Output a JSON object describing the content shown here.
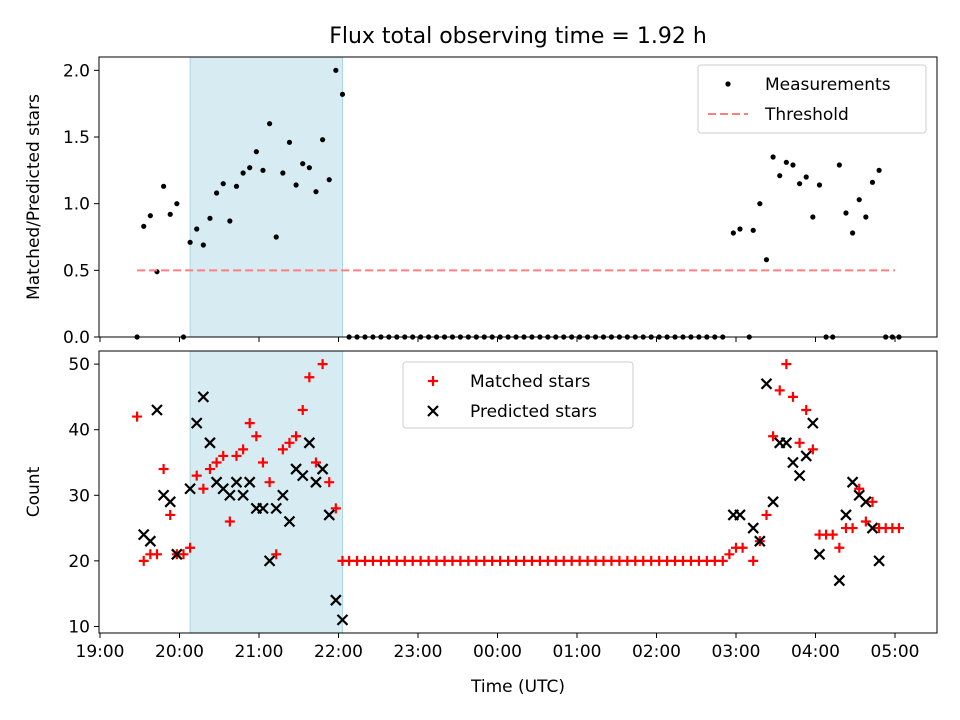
{
  "figure": {
    "title": "Flux total observing time = 1.92 h",
    "xlabel": "Time (UTC)",
    "x_ticks": [
      "19:00",
      "20:00",
      "21:00",
      "22:00",
      "23:00",
      "00:00",
      "01:00",
      "02:00",
      "03:00",
      "04:00",
      "05:00"
    ],
    "observing_window": {
      "start": "20:08",
      "end": "22:03",
      "color": "#add8e6"
    }
  },
  "chart_data": [
    {
      "type": "scatter",
      "ylabel": "Matched/Predicted stars",
      "ylim": [
        0,
        2.1
      ],
      "y_ticks": [
        "0.0",
        "0.5",
        "1.0",
        "1.5",
        "2.0"
      ],
      "legend_position": "upper-right",
      "series": [
        {
          "name": "Measurements",
          "color": "#000000",
          "marker": "dot",
          "points": [
            [
              "19:28",
              0.0
            ],
            [
              "19:33",
              0.83
            ],
            [
              "19:38",
              0.91
            ],
            [
              "19:43",
              0.49
            ],
            [
              "19:48",
              1.13
            ],
            [
              "19:53",
              0.92
            ],
            [
              "19:58",
              1.0
            ],
            [
              "20:03",
              0.0
            ],
            [
              "20:08",
              0.71
            ],
            [
              "20:13",
              0.81
            ],
            [
              "20:18",
              0.69
            ],
            [
              "20:23",
              0.89
            ],
            [
              "20:28",
              1.08
            ],
            [
              "20:33",
              1.15
            ],
            [
              "20:38",
              0.87
            ],
            [
              "20:43",
              1.13
            ],
            [
              "20:48",
              1.23
            ],
            [
              "20:53",
              1.27
            ],
            [
              "20:58",
              1.39
            ],
            [
              "21:03",
              1.25
            ],
            [
              "21:08",
              1.6
            ],
            [
              "21:13",
              0.75
            ],
            [
              "21:18",
              1.23
            ],
            [
              "21:23",
              1.46
            ],
            [
              "21:28",
              1.14
            ],
            [
              "21:33",
              1.3
            ],
            [
              "21:38",
              1.27
            ],
            [
              "21:43",
              1.09
            ],
            [
              "21:48",
              1.48
            ],
            [
              "21:53",
              1.18
            ],
            [
              "21:58",
              2.0
            ],
            [
              "22:03",
              1.82
            ],
            [
              "22:08",
              0
            ],
            [
              "22:14",
              0
            ],
            [
              "22:20",
              0
            ],
            [
              "22:26",
              0
            ],
            [
              "22:32",
              0
            ],
            [
              "22:38",
              0
            ],
            [
              "22:44",
              0
            ],
            [
              "22:50",
              0
            ],
            [
              "22:56",
              0
            ],
            [
              "23:02",
              0
            ],
            [
              "23:08",
              0
            ],
            [
              "23:14",
              0
            ],
            [
              "23:20",
              0
            ],
            [
              "23:26",
              0
            ],
            [
              "23:32",
              0
            ],
            [
              "23:38",
              0
            ],
            [
              "23:44",
              0
            ],
            [
              "23:50",
              0
            ],
            [
              "23:56",
              0
            ],
            [
              "00:02",
              0
            ],
            [
              "00:08",
              0
            ],
            [
              "00:14",
              0
            ],
            [
              "00:20",
              0
            ],
            [
              "00:26",
              0
            ],
            [
              "00:32",
              0
            ],
            [
              "00:38",
              0
            ],
            [
              "00:44",
              0
            ],
            [
              "00:50",
              0
            ],
            [
              "00:56",
              0
            ],
            [
              "01:02",
              0
            ],
            [
              "01:08",
              0
            ],
            [
              "01:14",
              0
            ],
            [
              "01:20",
              0
            ],
            [
              "01:26",
              0
            ],
            [
              "01:32",
              0
            ],
            [
              "01:38",
              0
            ],
            [
              "01:44",
              0
            ],
            [
              "01:50",
              0
            ],
            [
              "01:56",
              0
            ],
            [
              "02:02",
              0
            ],
            [
              "02:08",
              0
            ],
            [
              "02:14",
              0
            ],
            [
              "02:20",
              0
            ],
            [
              "02:26",
              0
            ],
            [
              "02:32",
              0
            ],
            [
              "02:38",
              0
            ],
            [
              "02:44",
              0
            ],
            [
              "02:50",
              0
            ],
            [
              "02:58",
              0.78
            ],
            [
              "03:03",
              0.81
            ],
            [
              "03:10",
              0.0
            ],
            [
              "03:13",
              0.8
            ],
            [
              "03:18",
              1.0
            ],
            [
              "03:23",
              0.58
            ],
            [
              "03:28",
              1.35
            ],
            [
              "03:33",
              1.21
            ],
            [
              "03:38",
              1.31
            ],
            [
              "03:43",
              1.29
            ],
            [
              "03:48",
              1.15
            ],
            [
              "03:53",
              1.2
            ],
            [
              "03:58",
              0.9
            ],
            [
              "04:03",
              1.14
            ],
            [
              "04:08",
              0.0
            ],
            [
              "04:13",
              0.0
            ],
            [
              "04:18",
              1.29
            ],
            [
              "04:23",
              0.93
            ],
            [
              "04:28",
              0.78
            ],
            [
              "04:33",
              1.03
            ],
            [
              "04:38",
              0.9
            ],
            [
              "04:43",
              1.16
            ],
            [
              "04:48",
              1.25
            ],
            [
              "04:53",
              0.0
            ],
            [
              "04:58",
              0.0
            ],
            [
              "05:03",
              0.0
            ]
          ]
        },
        {
          "name": "Threshold",
          "color": "#ff7f7f",
          "style": "dashed",
          "points": [
            [
              "19:28",
              0.5
            ],
            [
              "05:00",
              0.5
            ]
          ]
        }
      ]
    },
    {
      "type": "scatter",
      "ylabel": "Count",
      "ylim": [
        9,
        52
      ],
      "y_ticks": [
        "10",
        "20",
        "30",
        "40",
        "50"
      ],
      "legend_position": "upper-center",
      "series": [
        {
          "name": "Matched stars",
          "color": "#ff0000",
          "marker": "plus",
          "points": [
            [
              "19:28",
              42
            ],
            [
              "19:33",
              20
            ],
            [
              "19:38",
              21
            ],
            [
              "19:43",
              21
            ],
            [
              "19:48",
              34
            ],
            [
              "19:53",
              27
            ],
            [
              "19:58",
              21
            ],
            [
              "20:03",
              21
            ],
            [
              "20:08",
              22
            ],
            [
              "20:13",
              33
            ],
            [
              "20:18",
              31
            ],
            [
              "20:23",
              34
            ],
            [
              "20:28",
              35
            ],
            [
              "20:33",
              36
            ],
            [
              "20:38",
              26
            ],
            [
              "20:43",
              36
            ],
            [
              "20:48",
              37
            ],
            [
              "20:53",
              41
            ],
            [
              "20:58",
              39
            ],
            [
              "21:03",
              35
            ],
            [
              "21:08",
              32
            ],
            [
              "21:13",
              21
            ],
            [
              "21:18",
              37
            ],
            [
              "21:23",
              38
            ],
            [
              "21:28",
              39
            ],
            [
              "21:33",
              43
            ],
            [
              "21:38",
              48
            ],
            [
              "21:43",
              35
            ],
            [
              "21:48",
              50
            ],
            [
              "21:53",
              32
            ],
            [
              "21:58",
              28
            ],
            [
              "22:03",
              20
            ],
            [
              "22:08",
              20
            ],
            [
              "22:14",
              20
            ],
            [
              "22:20",
              20
            ],
            [
              "22:26",
              20
            ],
            [
              "22:32",
              20
            ],
            [
              "22:38",
              20
            ],
            [
              "22:44",
              20
            ],
            [
              "22:50",
              20
            ],
            [
              "22:56",
              20
            ],
            [
              "23:02",
              20
            ],
            [
              "23:08",
              20
            ],
            [
              "23:14",
              20
            ],
            [
              "23:20",
              20
            ],
            [
              "23:26",
              20
            ],
            [
              "23:32",
              20
            ],
            [
              "23:38",
              20
            ],
            [
              "23:44",
              20
            ],
            [
              "23:50",
              20
            ],
            [
              "23:56",
              20
            ],
            [
              "00:02",
              20
            ],
            [
              "00:08",
              20
            ],
            [
              "00:14",
              20
            ],
            [
              "00:20",
              20
            ],
            [
              "00:26",
              20
            ],
            [
              "00:32",
              20
            ],
            [
              "00:38",
              20
            ],
            [
              "00:44",
              20
            ],
            [
              "00:50",
              20
            ],
            [
              "00:56",
              20
            ],
            [
              "01:02",
              20
            ],
            [
              "01:08",
              20
            ],
            [
              "01:14",
              20
            ],
            [
              "01:20",
              20
            ],
            [
              "01:26",
              20
            ],
            [
              "01:32",
              20
            ],
            [
              "01:38",
              20
            ],
            [
              "01:44",
              20
            ],
            [
              "01:50",
              20
            ],
            [
              "01:56",
              20
            ],
            [
              "02:02",
              20
            ],
            [
              "02:08",
              20
            ],
            [
              "02:14",
              20
            ],
            [
              "02:20",
              20
            ],
            [
              "02:26",
              20
            ],
            [
              "02:32",
              20
            ],
            [
              "02:38",
              20
            ],
            [
              "02:44",
              20
            ],
            [
              "02:50",
              20
            ],
            [
              "02:55",
              21
            ],
            [
              "03:00",
              22
            ],
            [
              "03:05",
              22
            ],
            [
              "03:13",
              20
            ],
            [
              "03:18",
              23
            ],
            [
              "03:23",
              27
            ],
            [
              "03:28",
              39
            ],
            [
              "03:33",
              46
            ],
            [
              "03:38",
              50
            ],
            [
              "03:43",
              45
            ],
            [
              "03:48",
              38
            ],
            [
              "03:53",
              43
            ],
            [
              "03:58",
              37
            ],
            [
              "04:03",
              24
            ],
            [
              "04:08",
              24
            ],
            [
              "04:13",
              24
            ],
            [
              "04:18",
              22
            ],
            [
              "04:23",
              25
            ],
            [
              "04:28",
              25
            ],
            [
              "04:33",
              31
            ],
            [
              "04:38",
              26
            ],
            [
              "04:43",
              29
            ],
            [
              "04:48",
              25
            ],
            [
              "04:53",
              25
            ],
            [
              "04:58",
              25
            ],
            [
              "05:03",
              25
            ]
          ]
        },
        {
          "name": "Predicted stars",
          "color": "#000000",
          "marker": "x",
          "points": [
            [
              "19:33",
              24
            ],
            [
              "19:38",
              23
            ],
            [
              "19:43",
              43
            ],
            [
              "19:48",
              30
            ],
            [
              "19:53",
              29
            ],
            [
              "19:58",
              21
            ],
            [
              "20:08",
              31
            ],
            [
              "20:13",
              41
            ],
            [
              "20:18",
              45
            ],
            [
              "20:23",
              38
            ],
            [
              "20:28",
              32
            ],
            [
              "20:33",
              31
            ],
            [
              "20:38",
              30
            ],
            [
              "20:43",
              32
            ],
            [
              "20:48",
              30
            ],
            [
              "20:53",
              32
            ],
            [
              "20:58",
              28
            ],
            [
              "21:03",
              28
            ],
            [
              "21:08",
              20
            ],
            [
              "21:13",
              28
            ],
            [
              "21:18",
              30
            ],
            [
              "21:23",
              26
            ],
            [
              "21:28",
              34
            ],
            [
              "21:33",
              33
            ],
            [
              "21:38",
              38
            ],
            [
              "21:43",
              32
            ],
            [
              "21:48",
              34
            ],
            [
              "21:53",
              27
            ],
            [
              "21:58",
              14
            ],
            [
              "22:03",
              11
            ],
            [
              "02:58",
              27
            ],
            [
              "03:03",
              27
            ],
            [
              "03:13",
              25
            ],
            [
              "03:18",
              23
            ],
            [
              "03:23",
              47
            ],
            [
              "03:28",
              29
            ],
            [
              "03:33",
              38
            ],
            [
              "03:38",
              38
            ],
            [
              "03:43",
              35
            ],
            [
              "03:48",
              33
            ],
            [
              "03:53",
              36
            ],
            [
              "03:58",
              41
            ],
            [
              "04:03",
              21
            ],
            [
              "04:18",
              17
            ],
            [
              "04:23",
              27
            ],
            [
              "04:28",
              32
            ],
            [
              "04:33",
              30
            ],
            [
              "04:38",
              29
            ],
            [
              "04:43",
              25
            ],
            [
              "04:48",
              20
            ]
          ]
        }
      ]
    }
  ]
}
